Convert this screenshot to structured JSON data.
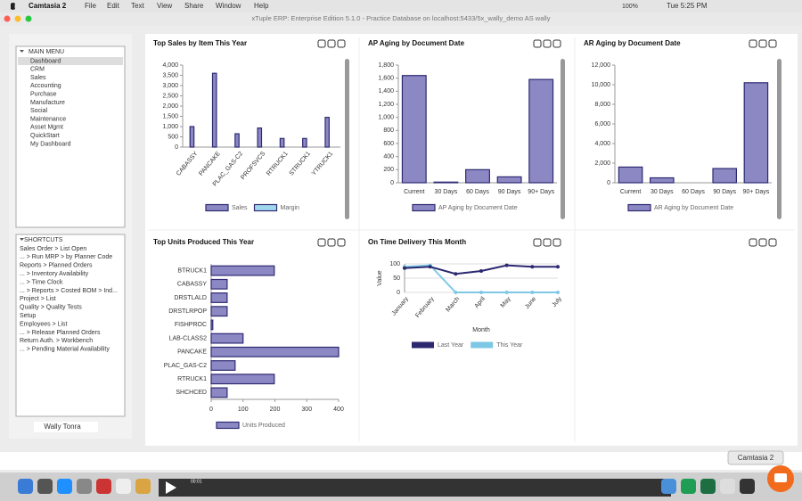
{
  "menu_bar": {
    "app": "Camtasia 2",
    "items": [
      "File",
      "Edit",
      "Text",
      "View",
      "Share",
      "Window",
      "Help"
    ],
    "battery": "100%",
    "clock": "Tue 5:25 PM"
  },
  "window_title": "xTuple ERP: Enterprise Edition 5.1.0 - Practice Database on localhost:5433/5x_wally_demo AS wally",
  "main_menu": {
    "title": "MAIN MENU",
    "items": [
      "Dashboard",
      "CRM",
      "Sales",
      "Accounting",
      "Purchase",
      "Manufacture",
      "Social",
      "Maintenance",
      "Asset Mgmt",
      "QuickStart",
      "My Dashboard"
    ]
  },
  "shortcuts": {
    "title": "SHORTCUTS",
    "items": [
      "Sales Order > List Open",
      "... > Run MRP > by Planner Code",
      "Reports > Planned Orders",
      "... > Inventory Availability",
      "... > Time Clock",
      "... > Reports > Costed BOM > Ind...",
      "Project > List",
      "Quality > Quality Tests",
      "Setup",
      "Employees > List",
      "... > Release Planned Orders",
      "Return Auth. > Workbench",
      "... > Pending Material Availability"
    ]
  },
  "user": "Wally Tonra",
  "dock": {
    "timer": "00:01",
    "tooltip": "Camtasia 2"
  },
  "chart_data": [
    {
      "type": "bar",
      "title": "Top Sales by Item This Year",
      "categories": [
        "CABASSY",
        "PANCAKE",
        "PLAC_GAS-C2",
        "PROFSVCS",
        "RTRUCK1",
        "STRUCK1",
        "YTRUCK1"
      ],
      "series": [
        {
          "name": "Sales",
          "color": "#8c88c4",
          "values": [
            1000,
            3600,
            650,
            930,
            420,
            420,
            1450
          ]
        },
        {
          "name": "Margin",
          "color": "#9fd8ee",
          "values": [
            0,
            0,
            0,
            0,
            0,
            0,
            0
          ]
        }
      ],
      "ylim": [
        0,
        4000
      ],
      "yticks": [
        0,
        500,
        {
          "value": 1000,
          "label": "1,000"
        },
        {
          "value": 1500,
          "label": "1,500"
        },
        {
          "value": 2000,
          "label": "2,000"
        },
        {
          "value": 2500,
          "label": "2,500"
        },
        {
          "value": 3000,
          "label": "3,000"
        },
        {
          "value": 3500,
          "label": "3,500"
        },
        {
          "value": 4000,
          "label": "4,000"
        }
      ]
    },
    {
      "type": "bar",
      "title": "AP Aging by Document Date",
      "categories": [
        "Current",
        "30 Days",
        "60 Days",
        "90 Days",
        "90+ Days"
      ],
      "series": [
        {
          "name": "AP Aging by Document Date",
          "color": "#8c88c4",
          "values": [
            1640,
            10,
            200,
            90,
            1580
          ]
        }
      ],
      "ylim": [
        0,
        1800
      ],
      "yticks": [
        0,
        200,
        400,
        600,
        800,
        {
          "value": 1000,
          "label": "1,000"
        },
        {
          "value": 1200,
          "label": "1,200"
        },
        {
          "value": 1400,
          "label": "1,400"
        },
        {
          "value": 1600,
          "label": "1,600"
        },
        {
          "value": 1800,
          "label": "1,800"
        }
      ]
    },
    {
      "type": "bar",
      "title": "AR Aging by Document Date",
      "categories": [
        "Current",
        "30 Days",
        "60 Days",
        "90 Days",
        "90+ Days"
      ],
      "series": [
        {
          "name": "AR Aging by Document Date",
          "color": "#8c88c4",
          "values": [
            1600,
            500,
            0,
            1450,
            10200
          ]
        }
      ],
      "ylim": [
        0,
        12000
      ],
      "yticks": [
        0,
        {
          "value": 2000,
          "label": "2,000"
        },
        {
          "value": 4000,
          "label": "4,000"
        },
        {
          "value": 6000,
          "label": "6,000"
        },
        {
          "value": 8000,
          "label": "8,000"
        },
        {
          "value": 10000,
          "label": "10,000"
        },
        {
          "value": 12000,
          "label": "12,000"
        }
      ]
    },
    {
      "type": "barh",
      "title": "Top Units Produced This Year",
      "categories": [
        "BTRUCK1",
        "CABASSY",
        "DRSTLALD",
        "DRSTLRPOP",
        "FISHPROC",
        "LAB-CLASS2",
        "PANCAKE",
        "PLAC_GAS-C2",
        "RTRUCK1",
        "SHCHCED"
      ],
      "series": [
        {
          "name": "Units Produced",
          "color": "#8c88c4",
          "values": [
            198,
            50,
            50,
            50,
            5,
            100,
            400,
            75,
            198,
            50
          ]
        }
      ],
      "xlim": [
        0,
        400
      ],
      "xticks": [
        0,
        100,
        200,
        300,
        400
      ]
    },
    {
      "type": "line",
      "title": "On Time Delivery This Month",
      "categories": [
        "January",
        "February",
        "March",
        "April",
        "May",
        "June",
        "July"
      ],
      "series": [
        {
          "name": "Last Year",
          "color": "#2b2870",
          "values": [
            85,
            90,
            65,
            75,
            95,
            90,
            90
          ]
        },
        {
          "name": "This Year",
          "color": "#7ec8e6",
          "values": [
            90,
            95,
            0,
            0,
            0,
            0,
            0
          ]
        }
      ],
      "ylim": [
        0,
        100
      ],
      "yticks": [
        0,
        50,
        100
      ],
      "xlabel": "Month",
      "ylabel": "Value"
    }
  ]
}
